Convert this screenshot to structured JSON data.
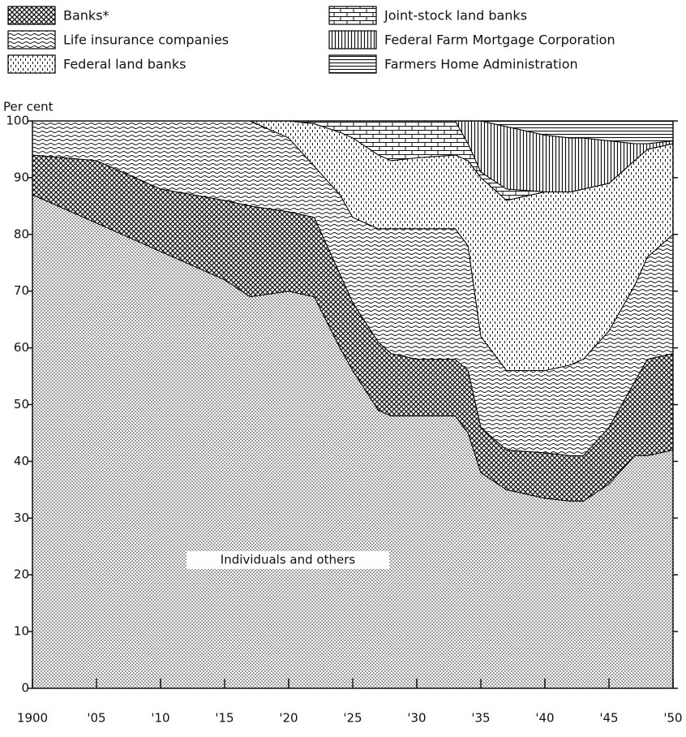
{
  "chart_data": {
    "type": "stacked_area",
    "y_axis_label": "Per cent",
    "annotation": "Individuals and others",
    "x": [
      1900,
      1905,
      1910,
      1915,
      1917,
      1920,
      1922,
      1924,
      1925,
      1927,
      1928,
      1930,
      1933,
      1934,
      1935,
      1937,
      1940,
      1942,
      1943,
      1945,
      1947,
      1948,
      1950
    ],
    "series": [
      {
        "name": "Individuals and others",
        "pattern": "dots",
        "color": "#000000",
        "values": [
          87,
          82,
          77,
          72,
          69,
          70,
          69,
          60,
          56,
          49,
          48,
          48,
          48,
          45,
          38,
          35,
          33.5,
          33,
          33,
          36,
          41,
          41,
          42
        ]
      },
      {
        "name": "Banks*",
        "pattern": "crosshatch",
        "color": "#000000",
        "values": [
          7,
          11,
          11,
          14,
          16,
          14,
          14,
          13,
          12,
          12,
          11,
          10,
          10,
          11,
          8,
          7,
          8,
          8,
          8,
          10,
          13,
          17,
          17
        ]
      },
      {
        "name": "Life insurance companies",
        "pattern": "wavy",
        "color": "#000000",
        "values": [
          6,
          7,
          12,
          14,
          15,
          13,
          9,
          14,
          15,
          20,
          22,
          23,
          23,
          22,
          16,
          14,
          14.5,
          16,
          17,
          17,
          17,
          18,
          21
        ]
      },
      {
        "name": "Federal land banks",
        "pattern": "dashes",
        "color": "#000000",
        "values": [
          0,
          0,
          0,
          0,
          0,
          3,
          7.5,
          11,
          14,
          13,
          12,
          12.5,
          13,
          15,
          28,
          30,
          31.5,
          30.5,
          30,
          26,
          22,
          19,
          16
        ]
      },
      {
        "name": "Joint-stock land banks",
        "pattern": "brick",
        "color": "#000000",
        "values": [
          0,
          0,
          0,
          0,
          0,
          0,
          0.5,
          2,
          3,
          6,
          7,
          6.5,
          6,
          3,
          1,
          2,
          0,
          0,
          0,
          0,
          0,
          0,
          0
        ]
      },
      {
        "name": "Federal Farm Mortgage Corporation",
        "pattern": "vlines",
        "color": "#000000",
        "values": [
          0,
          0,
          0,
          0,
          0,
          0,
          0,
          0,
          0,
          0,
          0,
          0,
          0,
          4,
          9,
          11,
          10,
          9.5,
          9,
          7.5,
          3,
          1,
          0.5
        ]
      },
      {
        "name": "Farmers Home Administration",
        "pattern": "hlines",
        "color": "#000000",
        "values": [
          0,
          0,
          0,
          0,
          0,
          0,
          0,
          0,
          0,
          0,
          0,
          0,
          0,
          0,
          0,
          1,
          2.5,
          3,
          3,
          3.5,
          4,
          4,
          3.5
        ]
      }
    ],
    "legend_order": [
      1,
      4,
      2,
      5,
      3,
      6
    ],
    "xlim": [
      1900,
      1950
    ],
    "xticks": [
      1900,
      {
        "value": 1905,
        "label": "'05"
      },
      {
        "value": 1910,
        "label": "'10"
      },
      {
        "value": 1915,
        "label": "'15"
      },
      {
        "value": 1920,
        "label": "'20"
      },
      {
        "value": 1925,
        "label": "'25"
      },
      {
        "value": 1930,
        "label": "'30"
      },
      {
        "value": 1935,
        "label": "'35"
      },
      {
        "value": 1940,
        "label": "'40"
      },
      {
        "value": 1945,
        "label": "'45"
      },
      {
        "value": 1950,
        "label": "'50"
      }
    ],
    "ylim": [
      0,
      100
    ],
    "yticks": [
      0,
      10,
      20,
      30,
      40,
      50,
      60,
      70,
      80,
      90,
      100
    ]
  }
}
